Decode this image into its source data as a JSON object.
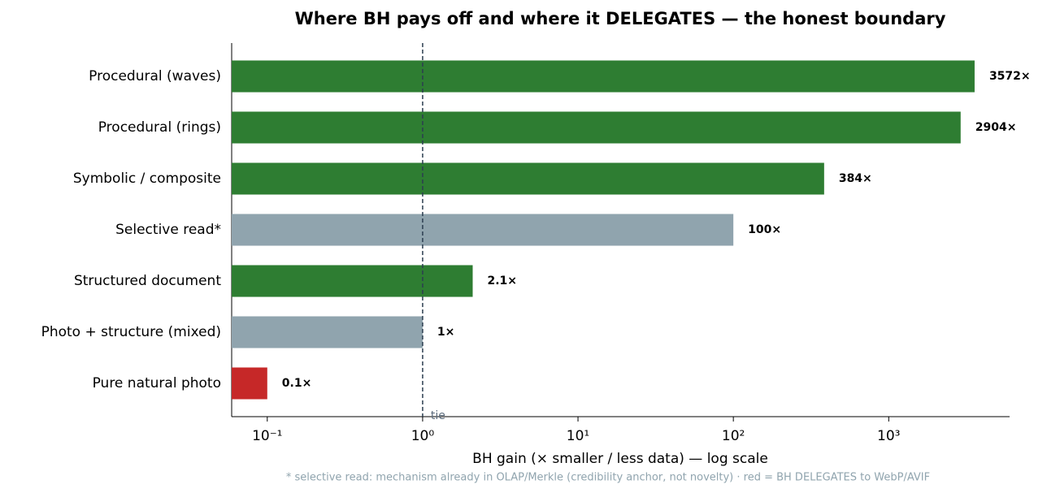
{
  "chart_data": {
    "type": "barh",
    "title": "Where BH pays off and where it DELEGATES — the honest boundary",
    "categories": [
      "Procedural (waves)",
      "Procedural (rings)",
      "Symbolic / composite",
      "Selective read*",
      "Structured document",
      "Photo + structure (mixed)",
      "Pure natural photo"
    ],
    "values": [
      3572,
      2904,
      384,
      100,
      2.1,
      1,
      0.1
    ],
    "value_labels": [
      "3572×",
      "2904×",
      "384×",
      "100×",
      "2.1×",
      "1×",
      "0.1×"
    ],
    "colors": [
      "#2e7d32",
      "#2e7d32",
      "#2e7d32",
      "#90a4ae",
      "#2e7d32",
      "#90a4ae",
      "#c62828"
    ],
    "xlabel": "BH gain (× smaller / less data)  —  log scale",
    "xscale": "log",
    "xlim": [
      0.059,
      6000
    ],
    "xticks": [
      {
        "value": 0.1,
        "label": "10⁻¹"
      },
      {
        "value": 1,
        "label": "10⁰"
      },
      {
        "value": 10,
        "label": "10¹"
      },
      {
        "value": 100,
        "label": "10²"
      },
      {
        "value": 1000,
        "label": "10³"
      }
    ],
    "reference_line": {
      "value": 1,
      "label": "tie",
      "color": "#2c3e50"
    },
    "footnote": "* selective read: mechanism already in OLAP/Merkle (credibility anchor, not novelty) · red = BH DELEGATES to WebP/AVIF"
  }
}
